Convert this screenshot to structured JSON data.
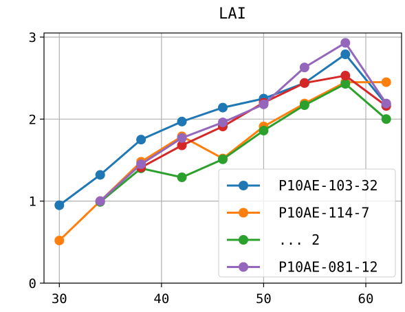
{
  "chart_data": {
    "type": "line",
    "title": "LAI",
    "xlabel": "",
    "ylabel": "",
    "xlim": [
      28.5,
      63.5
    ],
    "ylim": [
      0,
      3.05
    ],
    "xticks": [
      30,
      40,
      50,
      60
    ],
    "yticks": [
      0,
      1,
      2,
      3
    ],
    "grid": true,
    "legend_position": "lower-right",
    "series": [
      {
        "name": "P10AE-103-32",
        "color": "#1f77b4",
        "x": [
          30,
          34,
          38,
          42,
          46,
          50,
          54,
          58,
          62
        ],
        "y": [
          0.95,
          1.32,
          1.75,
          1.97,
          2.14,
          2.25,
          2.44,
          2.79,
          2.18
        ]
      },
      {
        "name": "P10AE-114-7",
        "color": "#ff7f0e",
        "x": [
          30,
          34,
          38,
          42,
          46,
          50,
          54,
          58,
          62
        ],
        "y": [
          0.52,
          1.0,
          1.48,
          1.79,
          1.52,
          1.91,
          2.19,
          2.45,
          2.45
        ]
      },
      {
        "name": "... 2",
        "color": "#2ca02c",
        "x": [
          34,
          38,
          42,
          46,
          50,
          54,
          58,
          62
        ],
        "y": [
          0.99,
          1.4,
          1.29,
          1.51,
          1.86,
          2.17,
          2.43,
          2.0
        ]
      },
      {
        "name": "",
        "color": "#d62728",
        "x": [
          38,
          42,
          46,
          50,
          54,
          58,
          62
        ],
        "y": [
          1.41,
          1.68,
          1.91,
          2.2,
          2.44,
          2.53,
          2.16
        ]
      },
      {
        "name": "P10AE-081-12",
        "color": "#9467bd",
        "x": [
          34,
          38,
          42,
          46,
          50,
          54,
          58,
          62
        ],
        "y": [
          1.0,
          1.45,
          1.77,
          1.96,
          2.18,
          2.63,
          2.93,
          2.19
        ]
      }
    ]
  }
}
